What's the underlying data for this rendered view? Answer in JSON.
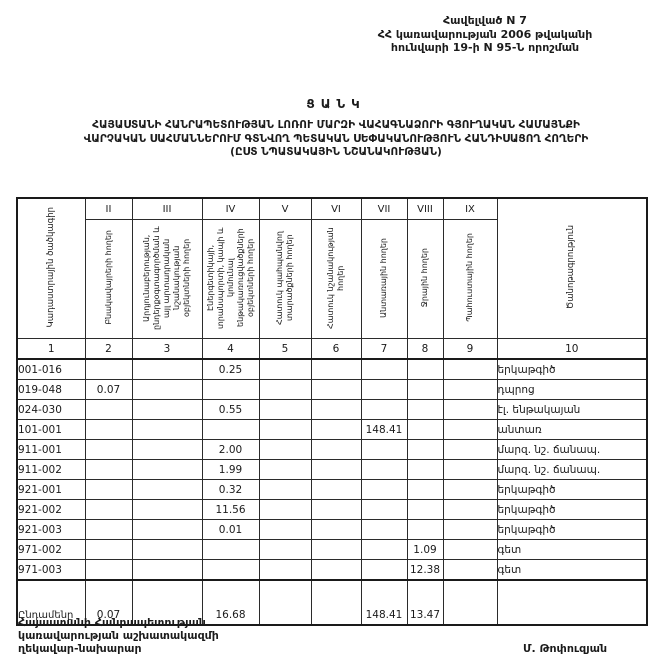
{
  "page": {
    "appendix_lines": [
      "Հավելված N 7",
      "ՀՀ կառավարության 2006 թվականի",
      "հունվարի 19-ի N 95-Ն որոշման"
    ],
    "title": "ՑԱՆԿ",
    "subtitle_lines": [
      "ՀԱՅԱՍՏԱՆԻ ՀԱՆՐԱՊԵՏՈՒԹՅԱՆ ԼՈՌՈՒ ՄԱՐԶԻ ՎԱՀԱԳՆԱՁՈՐԻ ԳՅՈՒՂԱԿԱՆ ՀԱՄԱՅՆՔԻ",
      "ՎԱՐՉԱԿԱՆ ՍԱՀՄԱՆՆԵՐՈՒՄ ԳՏՆՎՈՂ ՊԵՏԱԿԱՆ ՍԵՓԱԿԱՆՈՒԹՅՈՒՆ ՀԱՆԴԻՍԱՑՈՂ ՀՈՂԵՐԻ",
      "(ԸՍՏ ՆՊԱՏԱԿԱՅԻՆ ՆՇԱՆԱԿՈՒԹՅԱՆ)"
    ]
  },
  "table": {
    "corner_label": "Կադաստրային ծածկագիր",
    "corner_num": "1",
    "note_label": "Ծանոթագրություն",
    "note_num": "10",
    "columns": [
      {
        "numeral": "II",
        "num": "2",
        "label": "Բնակավայրերի հողեր"
      },
      {
        "numeral": "III",
        "num": "3",
        "label": "Արդյունաբերության, ընդերքօգտագործման և այլ արտադրական նշանակության օբյեկտների հողեր"
      },
      {
        "numeral": "IV",
        "num": "4",
        "label": "Էներգետիկայի, տրանսպորտի, կապի և կոմունալ ենթակառուցվածքների օբյեկտների հողեր"
      },
      {
        "numeral": "V",
        "num": "5",
        "label": "Հատուկ պահպանվող տարածքների հողեր"
      },
      {
        "numeral": "VI",
        "num": "6",
        "label": "Հատուկ նշանակության հողեր"
      },
      {
        "numeral": "VII",
        "num": "7",
        "label": "Անտառային հողեր"
      },
      {
        "numeral": "VIII",
        "num": "8",
        "label": "Ջրային հողեր"
      },
      {
        "numeral": "IX",
        "num": "9",
        "label": "Պահուստային հողեր"
      }
    ],
    "rows": [
      {
        "code": "001-016",
        "values": [
          "",
          "",
          "0.25",
          "",
          "",
          "",
          "",
          ""
        ],
        "note": "երկաթգիծ"
      },
      {
        "code": "019-048",
        "values": [
          "0.07",
          "",
          "",
          "",
          "",
          "",
          "",
          ""
        ],
        "note": "դպրոց"
      },
      {
        "code": "024-030",
        "values": [
          "",
          "",
          "0.55",
          "",
          "",
          "",
          "",
          ""
        ],
        "note": "էլ. ենթակայան"
      },
      {
        "code": "101-001",
        "values": [
          "",
          "",
          "",
          "",
          "",
          "148.41",
          "",
          ""
        ],
        "note": "անտառ"
      },
      {
        "code": "911-001",
        "values": [
          "",
          "",
          "2.00",
          "",
          "",
          "",
          "",
          ""
        ],
        "note": "մարզ. նշ. ճանապ."
      },
      {
        "code": "911-002",
        "values": [
          "",
          "",
          "1.99",
          "",
          "",
          "",
          "",
          ""
        ],
        "note": "մարզ. նշ. ճանապ."
      },
      {
        "code": "921-001",
        "values": [
          "",
          "",
          "0.32",
          "",
          "",
          "",
          "",
          ""
        ],
        "note": "երկաթգիծ"
      },
      {
        "code": "921-002",
        "values": [
          "",
          "",
          "11.56",
          "",
          "",
          "",
          "",
          ""
        ],
        "note": "երկաթգիծ"
      },
      {
        "code": "921-003",
        "values": [
          "",
          "",
          "0.01",
          "",
          "",
          "",
          "",
          ""
        ],
        "note": "երկաթգիծ"
      },
      {
        "code": "971-002",
        "values": [
          "",
          "",
          "",
          "",
          "",
          "",
          "1.09",
          ""
        ],
        "note": "գետ"
      },
      {
        "code": "971-003",
        "values": [
          "",
          "",
          "",
          "",
          "",
          "",
          "12.38",
          ""
        ],
        "note": "գետ"
      }
    ],
    "total_row": {
      "label": "Ընդամենը",
      "values": [
        "0.07",
        "",
        "16.68",
        "",
        "",
        "148.41",
        "13.47",
        ""
      ],
      "note": ""
    }
  },
  "footer": {
    "left_lines": [
      "Հայաստանի Հանրապետության",
      "կառավարության աշխատակազմի",
      "ղեկավար-նախարար"
    ],
    "signature": "Մ. Թոփուզյան"
  }
}
